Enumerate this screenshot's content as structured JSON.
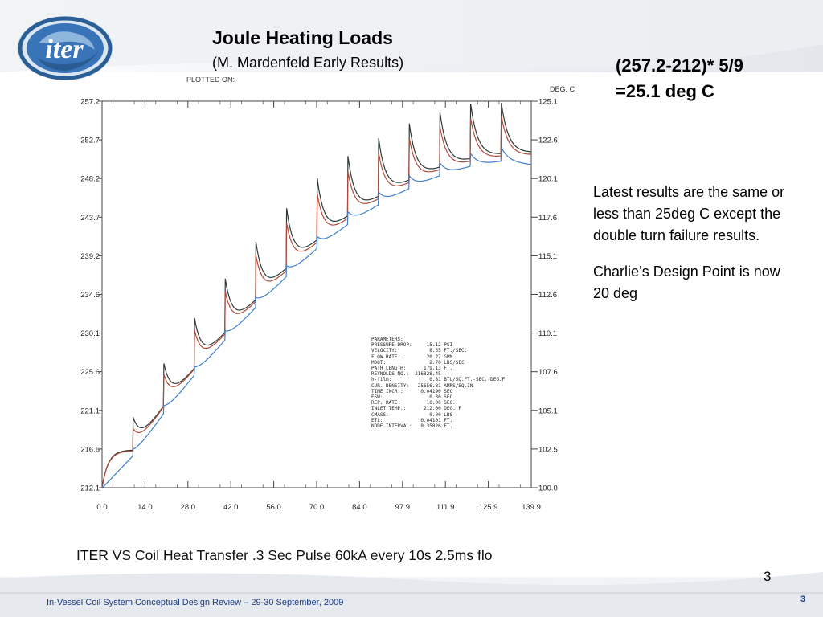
{
  "slide": {
    "title": "Joule Heating Loads",
    "subtitle": "(M. Mardenfeld Early Results)",
    "formula_lines": [
      "(257.2-212)* 5/9",
      "=25.1 deg C"
    ],
    "notes": [
      "Latest results are the same or less than 25deg C except the double turn failure results.",
      "Charlie’s Design Point is now 20 deg"
    ],
    "plot_caption": "ITER VS Coil Heat Transfer .3 Sec Pulse 60kA every 10s 2.5ms flo",
    "page_number": "3",
    "footer": "In-Vessel Coil System Conceptual Design Review – 29-30 September, 2009",
    "slide_number": "3",
    "logo_text": "iter"
  },
  "colors": {
    "footer_blue": "#1f3f86",
    "series_dark": "#2f3a35",
    "series_red": "#b04a3a",
    "series_blue": "#3f7fd0"
  },
  "chart_data": {
    "type": "line",
    "plotted_on_label": "PLOTTED ON:",
    "right_axis_unit": "DEG. C",
    "x_ticks": [
      "0.0",
      "14.0",
      "28.0",
      "42.0",
      "56.0",
      "70.0",
      "84.0",
      "97.9",
      "111.9",
      "125.9",
      "139.9"
    ],
    "y_left_ticks": [
      "257.2",
      "252.7",
      "248.2",
      "243.7",
      "239.2",
      "234.6",
      "230.1",
      "225.6",
      "221.1",
      "216.6",
      "212.1"
    ],
    "y_right_ticks": [
      "125.1",
      "122.6",
      "120.1",
      "117.6",
      "115.1",
      "112.6",
      "110.1",
      "107.6",
      "105.1",
      "102.5",
      "100.0"
    ],
    "xlim": [
      0,
      139.9
    ],
    "ylim": [
      212.1,
      257.2
    ],
    "grid": false,
    "pulse_period": 10,
    "series": [
      {
        "color": "#2f3a35",
        "peaks": [
          [
            0,
            212.1
          ],
          [
            10,
            220.3
          ],
          [
            20,
            226.6
          ],
          [
            30,
            231.9
          ],
          [
            40,
            236.5
          ],
          [
            50,
            240.8
          ],
          [
            60,
            244.7
          ],
          [
            70,
            248.2
          ],
          [
            80,
            250.8
          ],
          [
            90,
            252.9
          ],
          [
            100,
            254.6
          ],
          [
            110,
            255.9
          ],
          [
            120,
            256.9
          ],
          [
            130,
            257.0
          ]
        ],
        "troughs": [
          [
            10,
            216.5
          ],
          [
            20,
            221.6
          ],
          [
            30,
            226.0
          ],
          [
            40,
            230.2
          ],
          [
            50,
            234.0
          ],
          [
            60,
            237.7
          ],
          [
            70,
            241.0
          ],
          [
            80,
            243.8
          ],
          [
            90,
            246.1
          ],
          [
            100,
            248.0
          ],
          [
            110,
            249.5
          ],
          [
            120,
            250.5
          ],
          [
            130,
            251.1
          ],
          [
            139.9,
            251.3
          ]
        ]
      },
      {
        "color": "#b04a3a",
        "peaks": [
          [
            10,
            219.0
          ],
          [
            20,
            225.3
          ],
          [
            30,
            230.5
          ],
          [
            40,
            235.0
          ],
          [
            50,
            239.2
          ],
          [
            60,
            243.0
          ],
          [
            70,
            246.4
          ],
          [
            80,
            249.0
          ],
          [
            90,
            251.2
          ],
          [
            100,
            252.9
          ],
          [
            110,
            254.2
          ],
          [
            120,
            255.2
          ],
          [
            130,
            255.5
          ]
        ],
        "troughs": [
          [
            10,
            216.4
          ],
          [
            20,
            221.5
          ],
          [
            30,
            225.9
          ],
          [
            40,
            230.0
          ],
          [
            50,
            233.8
          ],
          [
            60,
            237.4
          ],
          [
            70,
            240.7
          ],
          [
            80,
            243.5
          ],
          [
            90,
            245.8
          ],
          [
            100,
            247.7
          ],
          [
            110,
            249.2
          ],
          [
            120,
            250.2
          ],
          [
            130,
            250.8
          ],
          [
            139.9,
            251.0
          ]
        ]
      },
      {
        "color": "#3f7fd0",
        "peaks": [
          [
            10,
            216.6
          ],
          [
            20,
            221.7
          ],
          [
            30,
            226.2
          ],
          [
            40,
            230.4
          ],
          [
            50,
            234.3
          ],
          [
            60,
            238.0
          ],
          [
            70,
            241.4
          ],
          [
            80,
            244.3
          ],
          [
            90,
            246.6
          ],
          [
            100,
            248.5
          ],
          [
            110,
            250.0
          ],
          [
            120,
            251.1
          ],
          [
            130,
            251.8
          ]
        ],
        "troughs": [
          [
            0,
            212.1
          ],
          [
            10,
            215.8
          ],
          [
            20,
            220.7
          ],
          [
            30,
            225.2
          ],
          [
            40,
            229.3
          ],
          [
            50,
            233.1
          ],
          [
            60,
            236.7
          ],
          [
            70,
            240.0
          ],
          [
            80,
            242.8
          ],
          [
            90,
            245.1
          ],
          [
            100,
            247.0
          ],
          [
            110,
            248.5
          ],
          [
            120,
            249.6
          ],
          [
            130,
            250.2
          ],
          [
            139.9,
            249.8
          ]
        ]
      }
    ],
    "parameters": [
      [
        "PARAMETERS:",
        "",
        ""
      ],
      [
        "PRESSURE DROP:",
        "15.12",
        "PSI"
      ],
      [
        "VELOCITY:",
        "8.55",
        "FT./SEC."
      ],
      [
        "FLOW RATE:",
        "20.27",
        "GPM"
      ],
      [
        "MDOT:",
        "2.70",
        "LBS/SEC"
      ],
      [
        "PATH LENGTH:",
        "179.13",
        "FT."
      ],
      [
        "REYNOLDS NO.:",
        "216828.45",
        ""
      ],
      [
        "h-film:",
        "0.81",
        "BTU/SQ.FT.-SEC.-DEG.F"
      ],
      [
        "CUR. DENSITY:",
        "25656.81",
        "AMPS/SQ.IN"
      ],
      [
        "TIME INCR.:",
        "0.04190",
        "SEC"
      ],
      [
        "ESW:",
        "0.30",
        "SEC."
      ],
      [
        "REP. RATE:",
        "10.00",
        "SEC."
      ],
      [
        "INLET TEMP.:",
        "212.00",
        "DEG. F"
      ],
      [
        "CMASS:",
        "0.00",
        "LBS"
      ],
      [
        "ETL:",
        "0.04101",
        "FT."
      ],
      [
        "NODE INTERVAL:",
        "0.35826",
        "FT."
      ]
    ]
  }
}
